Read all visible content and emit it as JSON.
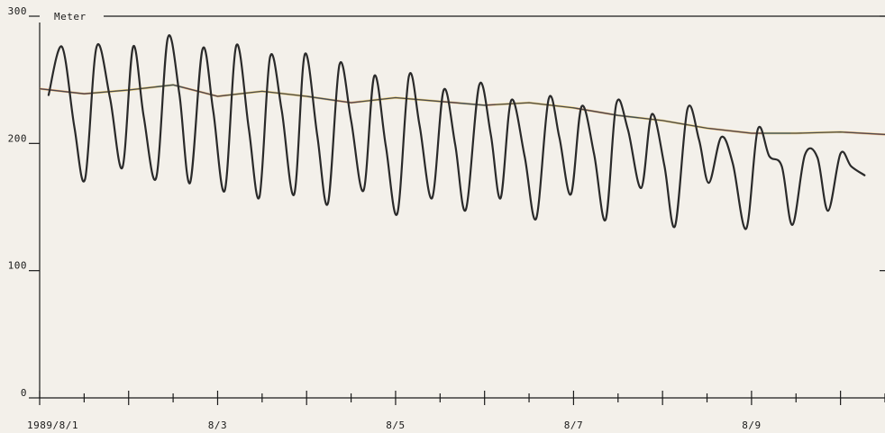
{
  "chart_data": {
    "type": "line",
    "ylabel": "Meter",
    "ylim": [
      0,
      300
    ],
    "yticks": [
      {
        "value": 0,
        "label": "0"
      },
      {
        "value": 100,
        "label": "100"
      },
      {
        "value": 200,
        "label": "200"
      },
      {
        "value": 300,
        "label": "300"
      }
    ],
    "xlim": [
      0,
      9.5
    ],
    "xticks": [
      {
        "value": 0,
        "label": "1989/8/1"
      },
      {
        "value": 2,
        "label": "8/3"
      },
      {
        "value": 4,
        "label": "8/5"
      },
      {
        "value": 6,
        "label": "8/7"
      },
      {
        "value": 8,
        "label": "8/9"
      }
    ],
    "minor_xtick_step": 0.5,
    "x_unit": "days since 1989/8/1",
    "colors": {
      "background": "#f3f0ea",
      "axis": "#1a1a1a",
      "tide_wave": "#2a2a2a",
      "mean_level": "#4a4a4a",
      "mean_level_overlay": [
        "#d94c8a",
        "#e0b020",
        "#49b3d6"
      ]
    },
    "series": [
      {
        "key": "tide_wave",
        "x": [
          0.1,
          0.25,
          0.39,
          0.51,
          0.64,
          0.79,
          0.93,
          1.05,
          1.17,
          1.31,
          1.44,
          1.57,
          1.69,
          1.83,
          1.95,
          2.08,
          2.21,
          2.35,
          2.47,
          2.59,
          2.72,
          2.86,
          2.98,
          3.12,
          3.24,
          3.37,
          3.5,
          3.64,
          3.76,
          3.89,
          4.02,
          4.15,
          4.27,
          4.41,
          4.54,
          4.67,
          4.79,
          4.94,
          5.07,
          5.18,
          5.3,
          5.45,
          5.58,
          5.72,
          5.84,
          5.97,
          6.09,
          6.23,
          6.36,
          6.48,
          6.61,
          6.76,
          6.88,
          7.02,
          7.14,
          7.28,
          7.41,
          7.52,
          7.66,
          7.79,
          7.94,
          8.07,
          8.2,
          8.34,
          8.46,
          8.6,
          8.74,
          8.86,
          9.0,
          9.12,
          9.27
        ],
        "y": [
          238,
          276,
          213,
          172,
          276,
          236,
          181,
          276,
          221,
          173,
          283,
          239,
          169,
          274,
          226,
          163,
          277,
          212,
          158,
          268,
          226,
          160,
          270,
          206,
          153,
          262,
          218,
          163,
          253,
          198,
          145,
          253,
          214,
          157,
          242,
          199,
          148,
          246,
          207,
          157,
          234,
          190,
          141,
          235,
          205,
          160,
          229,
          192,
          140,
          231,
          211,
          165,
          223,
          183,
          135,
          227,
          203,
          169,
          205,
          184,
          133,
          211,
          190,
          182,
          136,
          191,
          189,
          147,
          192,
          182,
          175
        ]
      },
      {
        "key": "mean_level",
        "x": [
          0,
          0.5,
          1,
          1.5,
          2,
          2.5,
          3,
          3.5,
          4,
          4.5,
          5,
          5.5,
          6,
          6.5,
          7,
          7.5,
          8,
          8.5,
          9,
          9.5
        ],
        "y": [
          243,
          239,
          242,
          246,
          237,
          241,
          237,
          232,
          236,
          233,
          230,
          232,
          228,
          222,
          218,
          212,
          208,
          208,
          209,
          207
        ]
      }
    ]
  }
}
